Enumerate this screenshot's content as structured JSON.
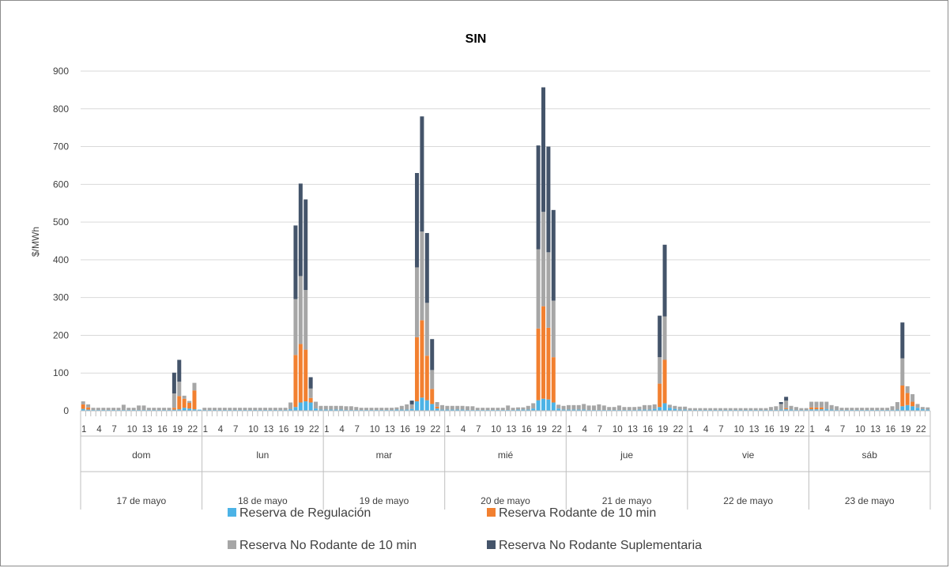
{
  "chart_data": {
    "type": "bar",
    "stacked": true,
    "title": "SIN",
    "ylabel": "$/MWh",
    "xlabel": "",
    "ylim": [
      0,
      900
    ],
    "yticks": [
      0,
      100,
      200,
      300,
      400,
      500,
      600,
      700,
      800,
      900
    ],
    "grid": true,
    "legend_position": "bottom",
    "hour_tick_labels": [
      "1",
      "4",
      "7",
      "10",
      "13",
      "16",
      "19",
      "22"
    ],
    "days": [
      {
        "weekday": "dom",
        "date": "17 de mayo"
      },
      {
        "weekday": "lun",
        "date": "18 de mayo"
      },
      {
        "weekday": "mar",
        "date": "19 de mayo"
      },
      {
        "weekday": "mié",
        "date": "20 de mayo"
      },
      {
        "weekday": "jue",
        "date": "21 de mayo"
      },
      {
        "weekday": "vie",
        "date": "22 de mayo"
      },
      {
        "weekday": "sáb",
        "date": "23 de mayo"
      }
    ],
    "colors": {
      "regulacion": "#4cb3e6",
      "rodante10": "#f28030",
      "norodante10": "#a6a6a6",
      "suplementaria": "#44546a"
    },
    "series": [
      {
        "name": "Reserva de Regulación",
        "key": "regulacion",
        "values": [
          [
            5,
            3,
            2,
            2,
            2,
            2,
            2,
            2,
            2,
            2,
            2,
            2,
            2,
            2,
            2,
            2,
            2,
            2,
            3,
            4,
            8,
            6,
            4,
            3
          ],
          [
            2,
            2,
            2,
            2,
            2,
            2,
            2,
            2,
            2,
            2,
            2,
            2,
            2,
            2,
            2,
            2,
            2,
            4,
            10,
            22,
            25,
            22,
            6,
            3
          ],
          [
            3,
            3,
            3,
            3,
            2,
            2,
            2,
            2,
            2,
            2,
            2,
            2,
            2,
            2,
            3,
            3,
            3,
            5,
            25,
            35,
            28,
            18,
            6,
            3
          ],
          [
            3,
            3,
            3,
            3,
            2,
            2,
            2,
            2,
            2,
            2,
            2,
            2,
            2,
            2,
            3,
            3,
            3,
            6,
            28,
            32,
            30,
            22,
            6,
            3
          ],
          [
            3,
            3,
            3,
            3,
            2,
            2,
            2,
            2,
            2,
            2,
            2,
            2,
            2,
            2,
            3,
            3,
            3,
            5,
            10,
            20,
            8,
            5,
            3,
            3
          ],
          [
            2,
            2,
            2,
            2,
            2,
            2,
            2,
            2,
            2,
            2,
            2,
            2,
            2,
            2,
            2,
            2,
            2,
            2,
            3,
            4,
            3,
            2,
            2,
            2
          ],
          [
            4,
            4,
            4,
            4,
            3,
            2,
            2,
            2,
            2,
            2,
            2,
            2,
            2,
            2,
            2,
            2,
            2,
            3,
            12,
            15,
            12,
            8,
            4,
            3
          ]
        ]
      },
      {
        "name": "Reserva Rodante de 10 min",
        "key": "rodante10",
        "values": [
          [
            12,
            6,
            0,
            0,
            0,
            0,
            0,
            0,
            0,
            0,
            0,
            0,
            0,
            0,
            0,
            0,
            0,
            0,
            5,
            35,
            24,
            15,
            50,
            0
          ],
          [
            0,
            0,
            0,
            0,
            0,
            0,
            0,
            0,
            0,
            0,
            0,
            0,
            0,
            0,
            0,
            0,
            0,
            0,
            138,
            155,
            137,
            12,
            0,
            0
          ],
          [
            0,
            0,
            0,
            0,
            0,
            0,
            0,
            0,
            0,
            0,
            0,
            0,
            0,
            0,
            0,
            0,
            0,
            0,
            170,
            205,
            118,
            40,
            5,
            0
          ],
          [
            0,
            0,
            0,
            0,
            0,
            0,
            0,
            0,
            0,
            0,
            0,
            0,
            0,
            0,
            0,
            0,
            0,
            0,
            190,
            245,
            190,
            120,
            0,
            0
          ],
          [
            0,
            0,
            0,
            0,
            0,
            0,
            0,
            0,
            0,
            0,
            0,
            0,
            0,
            0,
            0,
            0,
            0,
            0,
            62,
            115,
            0,
            0,
            0,
            0
          ],
          [
            0,
            0,
            0,
            0,
            0,
            0,
            0,
            0,
            0,
            0,
            0,
            0,
            0,
            0,
            0,
            0,
            0,
            0,
            0,
            3,
            0,
            0,
            0,
            0
          ],
          [
            5,
            5,
            5,
            0,
            0,
            0,
            0,
            0,
            0,
            0,
            0,
            0,
            0,
            0,
            0,
            0,
            0,
            0,
            55,
            32,
            12,
            0,
            0,
            0
          ]
        ]
      },
      {
        "name": "Reserva No Rodante de 10 min",
        "key": "norodante10",
        "values": [
          [
            8,
            8,
            6,
            6,
            6,
            6,
            6,
            6,
            14,
            6,
            6,
            12,
            12,
            6,
            6,
            6,
            6,
            6,
            38,
            38,
            8,
            5,
            20,
            0
          ],
          [
            6,
            6,
            6,
            6,
            6,
            6,
            6,
            6,
            6,
            6,
            6,
            6,
            6,
            6,
            6,
            6,
            6,
            18,
            148,
            180,
            158,
            25,
            18,
            10
          ],
          [
            10,
            10,
            10,
            10,
            10,
            10,
            8,
            6,
            6,
            6,
            6,
            6,
            6,
            6,
            6,
            10,
            14,
            12,
            185,
            235,
            140,
            50,
            12,
            12
          ],
          [
            10,
            10,
            10,
            10,
            10,
            10,
            6,
            6,
            6,
            6,
            6,
            6,
            12,
            6,
            6,
            6,
            10,
            14,
            210,
            250,
            200,
            150,
            10,
            10
          ],
          [
            12,
            12,
            12,
            15,
            12,
            12,
            15,
            12,
            8,
            8,
            12,
            8,
            8,
            8,
            8,
            12,
            12,
            12,
            70,
            115,
            8,
            8,
            8,
            8
          ],
          [
            5,
            5,
            5,
            5,
            5,
            5,
            5,
            5,
            5,
            5,
            5,
            5,
            5,
            5,
            5,
            5,
            8,
            10,
            15,
            20,
            10,
            8,
            5,
            5
          ],
          [
            15,
            15,
            15,
            20,
            12,
            10,
            6,
            6,
            6,
            6,
            6,
            6,
            6,
            6,
            6,
            6,
            10,
            20,
            72,
            18,
            20,
            10,
            6,
            6
          ]
        ]
      },
      {
        "name": "Reserva No Rodante Suplementaria",
        "key": "suplementaria",
        "values": [
          [
            0,
            0,
            0,
            0,
            0,
            0,
            0,
            0,
            0,
            0,
            0,
            0,
            0,
            0,
            0,
            0,
            0,
            0,
            55,
            58,
            0,
            0,
            0,
            0
          ],
          [
            0,
            0,
            0,
            0,
            0,
            0,
            0,
            0,
            0,
            0,
            0,
            0,
            0,
            0,
            0,
            0,
            0,
            0,
            195,
            245,
            240,
            30,
            0,
            0
          ],
          [
            0,
            0,
            0,
            0,
            0,
            0,
            0,
            0,
            0,
            0,
            0,
            0,
            0,
            0,
            0,
            0,
            0,
            10,
            250,
            305,
            185,
            82,
            0,
            0
          ],
          [
            0,
            0,
            0,
            0,
            0,
            0,
            0,
            0,
            0,
            0,
            0,
            0,
            0,
            0,
            0,
            0,
            0,
            0,
            275,
            330,
            280,
            240,
            0,
            0
          ],
          [
            0,
            0,
            0,
            0,
            0,
            0,
            0,
            0,
            0,
            0,
            0,
            0,
            0,
            0,
            0,
            0,
            0,
            0,
            110,
            190,
            0,
            0,
            0,
            0
          ],
          [
            0,
            0,
            0,
            0,
            0,
            0,
            0,
            0,
            0,
            0,
            0,
            0,
            0,
            0,
            0,
            0,
            0,
            0,
            5,
            10,
            0,
            0,
            0,
            0
          ],
          [
            0,
            0,
            0,
            0,
            0,
            0,
            0,
            0,
            0,
            0,
            0,
            0,
            0,
            0,
            0,
            0,
            0,
            0,
            95,
            0,
            0,
            0,
            0,
            0
          ]
        ]
      }
    ]
  }
}
